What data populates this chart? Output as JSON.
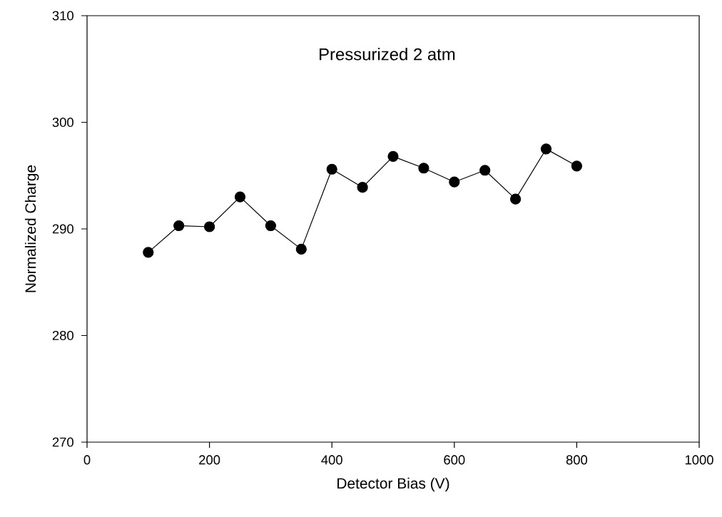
{
  "chart_data": {
    "type": "line",
    "xlabel": "Detector Bias (V)",
    "ylabel": "Normalized Charge",
    "annotations": [
      "Pressurized 2 atm"
    ],
    "x": [
      100,
      150,
      200,
      250,
      300,
      350,
      400,
      450,
      500,
      550,
      600,
      650,
      700,
      750,
      800
    ],
    "series": [
      {
        "color": "#000000",
        "values": [
          287.8,
          290.3,
          290.2,
          293.0,
          290.3,
          288.1,
          295.6,
          293.9,
          296.8,
          295.7,
          294.4,
          295.5,
          292.8,
          297.5,
          295.9
        ]
      }
    ],
    "xlim": [
      0,
      1000
    ],
    "xticks": [
      0,
      200,
      400,
      600,
      800,
      1000
    ],
    "ylim": [
      270,
      310
    ],
    "yticks": [
      270,
      280,
      290,
      300,
      310
    ],
    "marker": "circle",
    "line_style": "solid",
    "grid": false
  }
}
